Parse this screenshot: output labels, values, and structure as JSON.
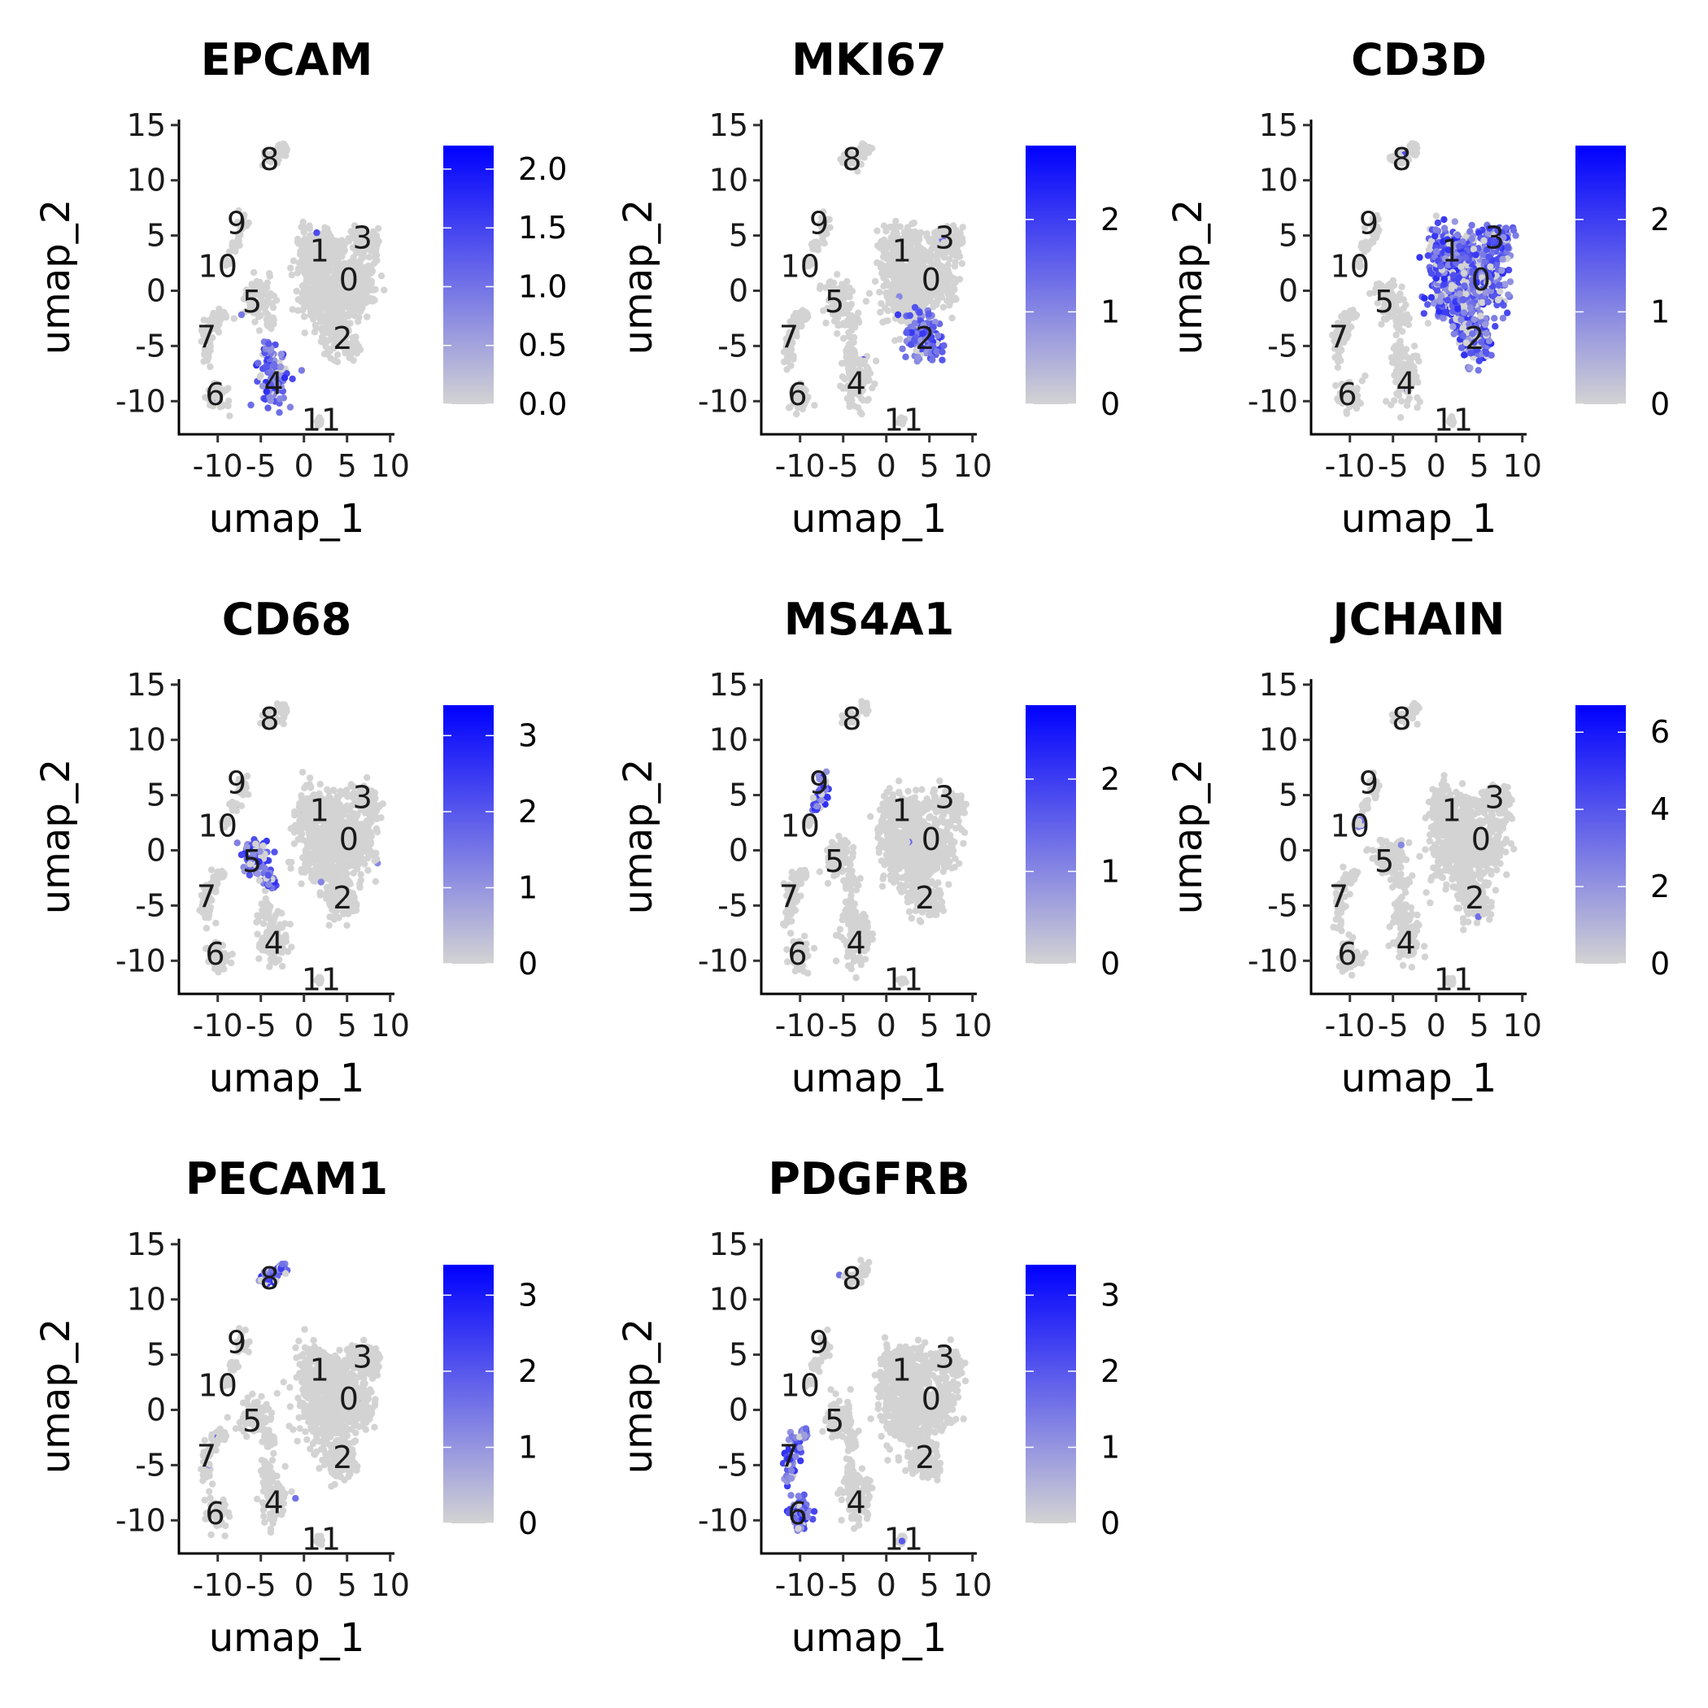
{
  "figure": {
    "x_label": "umap_1",
    "y_label": "umap_2",
    "x_ticks": [
      -10,
      -5,
      0,
      5,
      10
    ],
    "y_ticks": [
      -10,
      -5,
      0,
      5,
      10,
      15
    ],
    "xlim": [
      -14.5,
      10.5
    ],
    "ylim": [
      -13,
      15.5
    ],
    "low_color": "#d3d3d3",
    "high_color": "#0000ff"
  },
  "cluster_labels": [
    {
      "label": "0",
      "x": 5.2,
      "y": 1.0
    },
    {
      "label": "1",
      "x": 1.8,
      "y": 3.6
    },
    {
      "label": "2",
      "x": 4.5,
      "y": -4.3
    },
    {
      "label": "3",
      "x": 6.8,
      "y": 4.8
    },
    {
      "label": "4",
      "x": -3.5,
      "y": -8.4
    },
    {
      "label": "5",
      "x": -6.0,
      "y": -1.0
    },
    {
      "label": "6",
      "x": -10.3,
      "y": -9.4
    },
    {
      "label": "7",
      "x": -11.3,
      "y": -4.2
    },
    {
      "label": "8",
      "x": -4.0,
      "y": 11.9
    },
    {
      "label": "9",
      "x": -7.8,
      "y": 6.1
    },
    {
      "label": "10",
      "x": -10.0,
      "y": 2.2
    },
    {
      "label": "11",
      "x": 2.0,
      "y": -11.7
    }
  ],
  "chart_data": [
    {
      "type": "scatter",
      "title": "EPCAM",
      "color_scale": {
        "min": 0,
        "max": 2.2,
        "tick_labels": [
          "0.0",
          "0.5",
          "1.0",
          "1.5",
          "2.0"
        ],
        "tick_values": [
          0,
          0.5,
          1.0,
          1.5,
          2.0
        ]
      },
      "expressing_clusters": [
        "4"
      ]
    },
    {
      "type": "scatter",
      "title": "MKI67",
      "color_scale": {
        "min": 0,
        "max": 2.8,
        "tick_labels": [
          "0",
          "1",
          "2"
        ],
        "tick_values": [
          0,
          1,
          2
        ]
      },
      "expressing_clusters": [
        "2"
      ]
    },
    {
      "type": "scatter",
      "title": "CD3D",
      "color_scale": {
        "min": 0,
        "max": 2.8,
        "tick_labels": [
          "0",
          "1",
          "2"
        ],
        "tick_values": [
          0,
          1,
          2
        ]
      },
      "expressing_clusters": [
        "0",
        "1",
        "2",
        "3"
      ]
    },
    {
      "type": "scatter",
      "title": "CD68",
      "color_scale": {
        "min": 0,
        "max": 3.4,
        "tick_labels": [
          "0",
          "1",
          "2",
          "3"
        ],
        "tick_values": [
          0,
          1,
          2,
          3
        ]
      },
      "expressing_clusters": [
        "5"
      ]
    },
    {
      "type": "scatter",
      "title": "MS4A1",
      "color_scale": {
        "min": 0,
        "max": 2.8,
        "tick_labels": [
          "0",
          "1",
          "2"
        ],
        "tick_values": [
          0,
          1,
          2
        ]
      },
      "expressing_clusters": [
        "9"
      ]
    },
    {
      "type": "scatter",
      "title": "JCHAIN",
      "color_scale": {
        "min": 0,
        "max": 6.7,
        "tick_labels": [
          "0",
          "2",
          "4",
          "6"
        ],
        "tick_values": [
          0,
          2,
          4,
          6
        ]
      },
      "expressing_clusters": [
        "10"
      ]
    },
    {
      "type": "scatter",
      "title": "PECAM1",
      "color_scale": {
        "min": 0,
        "max": 3.4,
        "tick_labels": [
          "0",
          "1",
          "2",
          "3"
        ],
        "tick_values": [
          0,
          1,
          2,
          3
        ]
      },
      "expressing_clusters": [
        "8"
      ]
    },
    {
      "type": "scatter",
      "title": "PDGFRB",
      "color_scale": {
        "min": 0,
        "max": 3.4,
        "tick_labels": [
          "0",
          "1",
          "2",
          "3"
        ],
        "tick_values": [
          0,
          1,
          2,
          3
        ]
      },
      "expressing_clusters": [
        "6",
        "7"
      ]
    }
  ]
}
